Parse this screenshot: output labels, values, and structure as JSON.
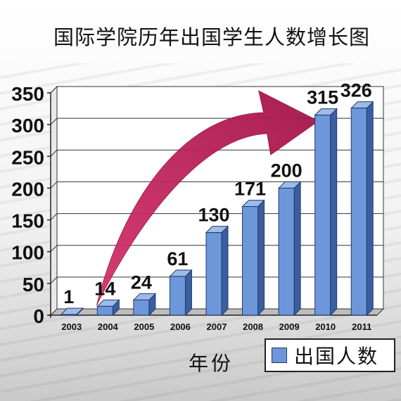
{
  "chart_data": {
    "type": "bar",
    "title": "国际学院历年出国学生人数增长图",
    "xlabel": "年份",
    "ylabel": "",
    "categories": [
      "2003",
      "2004",
      "2005",
      "2006",
      "2007",
      "2008",
      "2009",
      "2010",
      "2011"
    ],
    "series": [
      {
        "name": "出国人数",
        "values": [
          1,
          14,
          24,
          61,
          130,
          171,
          200,
          315,
          326
        ]
      }
    ],
    "ylim": [
      0,
      350
    ],
    "yticks": [
      0,
      50,
      100,
      150,
      200,
      250,
      300,
      350
    ],
    "grid": true,
    "legend": "bottom-right",
    "bar_color": "#6d97d9",
    "arrow_color": "#c2185b"
  }
}
